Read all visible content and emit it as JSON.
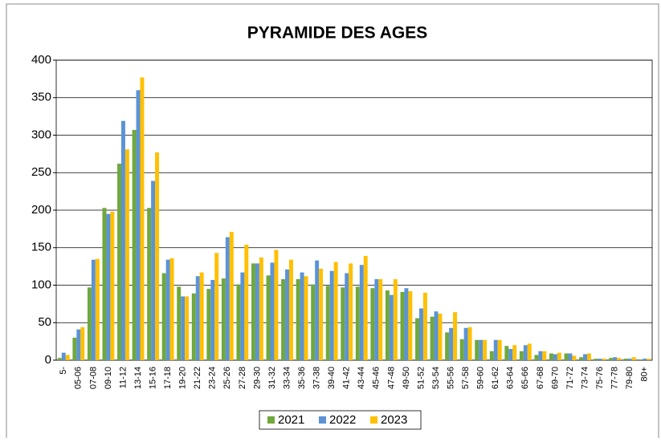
{
  "chart_data": {
    "type": "bar",
    "title": "PYRAMIDE  DES AGES",
    "categories": [
      "5-",
      "05-06",
      "07-08",
      "09-10",
      "11-12",
      "13-14",
      "15-16",
      "17-18",
      "19-20",
      "21-22",
      "23-24",
      "25-26",
      "27-28",
      "29-30",
      "31-32",
      "33-34",
      "35-36",
      "37-38",
      "39-40",
      "41-42",
      "43-44",
      "45-46",
      "47-48",
      "49-50",
      "51-52",
      "53-54",
      "55-56",
      "57-58",
      "59-60",
      "61-62",
      "63-64",
      "65-66",
      "67-68",
      "69-70",
      "71-72",
      "73-74",
      "75-76",
      "77-78",
      "79-80",
      "80+"
    ],
    "series": [
      {
        "name": "2021",
        "color": "#70a83c",
        "values": [
          3,
          30,
          97,
          203,
          262,
          307,
          203,
          116,
          98,
          89,
          95,
          109,
          101,
          129,
          113,
          108,
          108,
          101,
          99,
          97,
          98,
          96,
          93,
          91,
          56,
          58,
          37,
          28,
          27,
          12,
          19,
          12,
          7,
          9,
          9,
          4,
          2,
          3,
          2,
          1
        ]
      },
      {
        "name": "2022",
        "color": "#5b93d6",
        "values": [
          10,
          41,
          134,
          195,
          319,
          360,
          239,
          134,
          85,
          112,
          107,
          164,
          117,
          129,
          130,
          121,
          117,
          133,
          119,
          116,
          127,
          108,
          87,
          96,
          69,
          65,
          43,
          43,
          27,
          27,
          15,
          20,
          12,
          8,
          9,
          8,
          2,
          4,
          2,
          2
        ]
      },
      {
        "name": "2023",
        "color": "#ffc000",
        "values": [
          7,
          44,
          135,
          198,
          281,
          377,
          277,
          136,
          85,
          117,
          143,
          171,
          154,
          137,
          147,
          134,
          112,
          122,
          131,
          129,
          139,
          108,
          108,
          92,
          90,
          62,
          64,
          44,
          27,
          27,
          20,
          22,
          12,
          10,
          6,
          9,
          2,
          3,
          4,
          2
        ]
      }
    ],
    "ylim": [
      0,
      400
    ],
    "yticks": [
      0,
      50,
      100,
      150,
      200,
      250,
      300,
      350,
      400
    ],
    "grid": true,
    "legend": "bottom"
  }
}
